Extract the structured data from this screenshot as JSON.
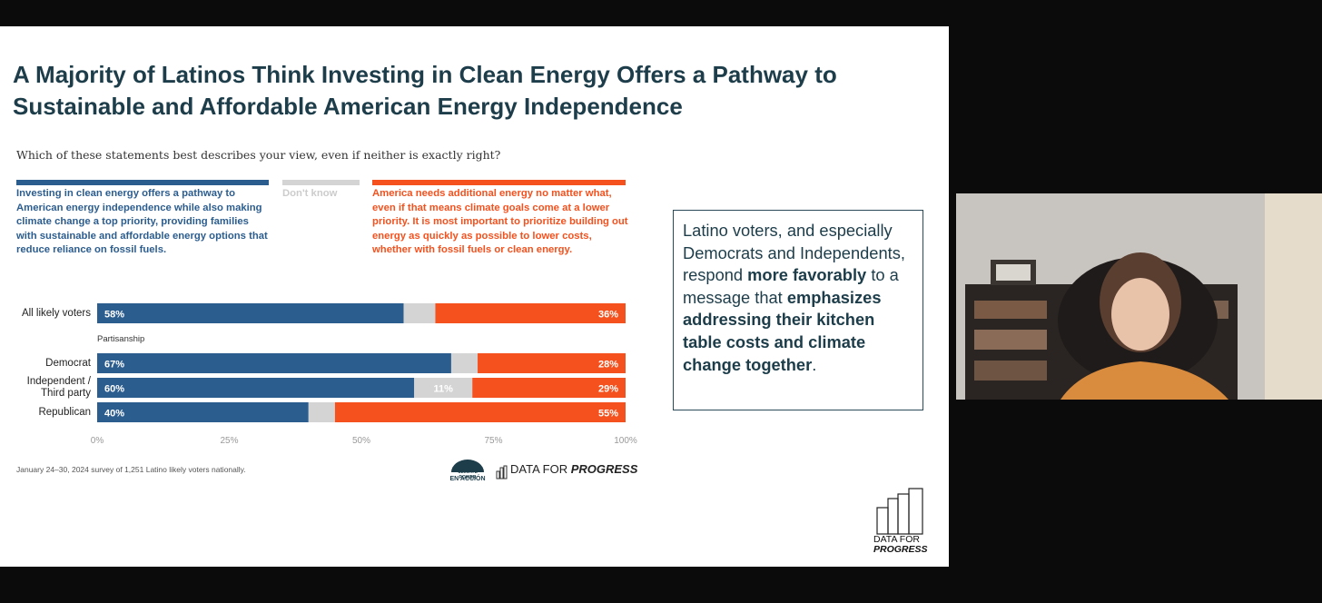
{
  "title": "A Majority of Latinos Think Investing in Clean Energy Offers a Pathway to Sustainable and Affordable American Energy Independence",
  "chart_data": {
    "type": "stacked-bar-horizontal",
    "subtitle": "Which of these statements best describes your view, even if neither is exactly right?",
    "categories": [
      "All likely voters",
      "Democrat",
      "Independent / Third party",
      "Republican"
    ],
    "group_label": "Partisanship",
    "series": [
      {
        "name": "Investing in clean energy offers a pathway to American energy independence while also making climate change a top priority, providing families with sustainable and affordable energy options that reduce reliance on fossil fuels.",
        "color": "#2c5d8f",
        "values": [
          58,
          67,
          60,
          40
        ],
        "value_labels": [
          "58%",
          "67%",
          "60%",
          "40%"
        ]
      },
      {
        "name": "Don't know",
        "color": "#d4d4d4",
        "values": [
          6,
          5,
          11,
          5
        ],
        "value_labels": [
          null,
          null,
          "11%",
          null
        ]
      },
      {
        "name": "America needs additional energy no matter what, even if that means climate goals come at a lower priority. It is most important to prioritize building out energy as quickly as possible to lower costs, whether with fossil fuels or clean energy.",
        "color": "#f4511e",
        "values": [
          36,
          28,
          29,
          55
        ],
        "value_labels": [
          "36%",
          "28%",
          "29%",
          "55%"
        ]
      }
    ],
    "xlim": [
      0,
      100
    ],
    "xticks": [
      {
        "value": 0,
        "label": "0%"
      },
      {
        "value": 25,
        "label": "25%"
      },
      {
        "value": 50,
        "label": "50%"
      },
      {
        "value": 75,
        "label": "75%"
      },
      {
        "value": 100,
        "label": "100%"
      }
    ],
    "source": "January 24–30, 2024 survey of 1,251 Latino likely voters nationally."
  },
  "logos": {
    "partner_top": "CLIMATE POWER",
    "partner_bottom": "EN ACCIÓN",
    "dfp_a": "DATA FOR",
    "dfp_b": "PROGRESS"
  },
  "callout": [
    "Latino voters, and especially Democrats and Independents, respond ",
    "more favorably",
    " to a message that ",
    "emphasizes addressing their kitchen table costs and climate change together",
    "."
  ]
}
